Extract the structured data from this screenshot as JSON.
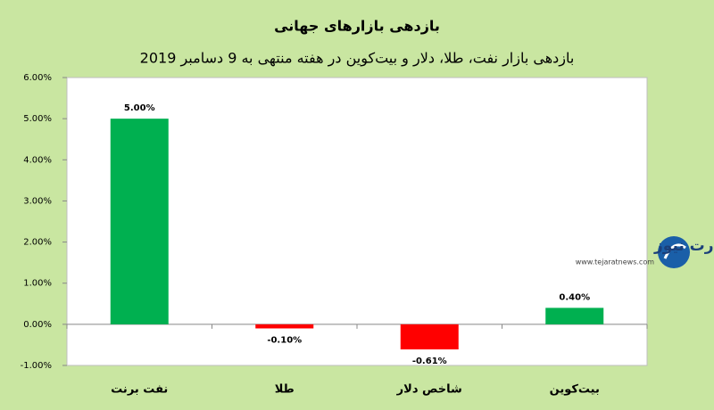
{
  "chart_data": {
    "type": "bar",
    "title": "بازدهی بازارهای جهانی",
    "subtitle": "بازدهی بازار نفت، طلا، دلار و بیت‌کوین در هفته منتهی به 9 دسامبر 2019",
    "categories": [
      "نفت برنت",
      "طلا",
      "شاخص دلار",
      "بیت‌کوین"
    ],
    "values": [
      5.0,
      -0.1,
      -0.61,
      0.4
    ],
    "value_labels": [
      "5.00%",
      "-0.10%",
      "-0.61%",
      "0.40%"
    ],
    "colors": [
      "#00b050",
      "#ff0000",
      "#ff0000",
      "#00b050"
    ],
    "ylim": [
      -1,
      6
    ],
    "yticks": [
      {
        "value": -1,
        "label": "-1.00%"
      },
      {
        "value": 0,
        "label": "0.00%"
      },
      {
        "value": 1,
        "label": "1.00%"
      },
      {
        "value": 2,
        "label": "2.00%"
      },
      {
        "value": 3,
        "label": "3.00%"
      },
      {
        "value": 4,
        "label": "4.00%"
      },
      {
        "value": 5,
        "label": "5.00%"
      },
      {
        "value": 6,
        "label": "6.00%"
      }
    ],
    "grid": false,
    "watermark": {
      "brand": "تجارت نیوز",
      "url": "www.tejaratnews.com"
    }
  }
}
